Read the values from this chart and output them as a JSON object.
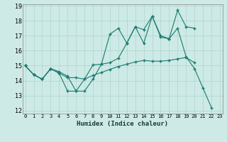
{
  "xlabel": "Humidex (Indice chaleur)",
  "bg_color": "#cdeae6",
  "grid_color": "#aed4cf",
  "line_color": "#1a7a6e",
  "xlim": [
    0,
    23
  ],
  "ylim": [
    12,
    19
  ],
  "yticks": [
    12,
    13,
    14,
    15,
    16,
    17,
    18,
    19
  ],
  "xticks": [
    0,
    1,
    2,
    3,
    4,
    5,
    6,
    7,
    8,
    9,
    10,
    11,
    12,
    13,
    14,
    15,
    16,
    17,
    18,
    19,
    20,
    21,
    22,
    23
  ],
  "line1_x": [
    0,
    1,
    2,
    3,
    4,
    5,
    6,
    7,
    8,
    9,
    10,
    11,
    12,
    13,
    14,
    15,
    16,
    17,
    18,
    19,
    20,
    21,
    22
  ],
  "line1_y": [
    15.0,
    14.4,
    14.1,
    14.8,
    14.5,
    13.3,
    13.3,
    14.1,
    15.05,
    15.1,
    17.1,
    17.5,
    16.5,
    17.6,
    16.5,
    18.3,
    17.0,
    16.8,
    18.7,
    17.6,
    17.5,
    null,
    null
  ],
  "line2_x": [
    0,
    1,
    2,
    3,
    4,
    5,
    6,
    7,
    8,
    9,
    10,
    11,
    12,
    13,
    14,
    15,
    16,
    17,
    18,
    19,
    20,
    21,
    22
  ],
  "line2_y": [
    15.0,
    14.4,
    14.1,
    14.8,
    14.6,
    14.3,
    13.3,
    13.3,
    14.1,
    15.1,
    15.2,
    15.5,
    16.5,
    17.6,
    17.4,
    18.3,
    16.9,
    16.8,
    17.5,
    15.6,
    14.8,
    13.5,
    12.2
  ],
  "line3_x": [
    0,
    1,
    2,
    3,
    4,
    5,
    6,
    7,
    8,
    9,
    10,
    11,
    12,
    13,
    14,
    15,
    16,
    17,
    18,
    19,
    20,
    21,
    22
  ],
  "line3_y": [
    15.0,
    14.4,
    14.1,
    14.8,
    14.5,
    14.2,
    14.2,
    14.1,
    14.35,
    14.55,
    14.75,
    14.95,
    15.1,
    15.25,
    15.35,
    15.3,
    15.3,
    15.35,
    15.45,
    15.55,
    15.2,
    null,
    null
  ]
}
